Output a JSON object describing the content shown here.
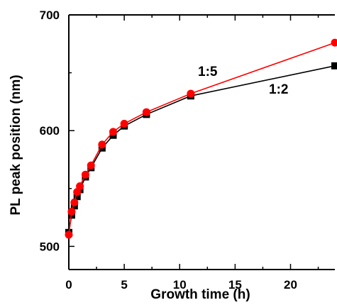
{
  "chart_data": {
    "type": "line",
    "title": "",
    "xlabel": "Growth time (h)",
    "ylabel": "PL peak position (nm)",
    "xlim": [
      0,
      24
    ],
    "ylim": [
      480,
      700
    ],
    "xticks": [
      0,
      5,
      10,
      15,
      20
    ],
    "yticks": [
      500,
      600,
      700
    ],
    "grid": false,
    "series": [
      {
        "name": "1:2",
        "color": "#000000",
        "marker": "square",
        "x": [
          0,
          0.25,
          0.5,
          0.75,
          1,
          1.5,
          2,
          3,
          4,
          5,
          7,
          11,
          24
        ],
        "y": [
          512,
          527,
          535,
          543,
          549,
          560,
          568,
          585,
          596,
          604,
          614,
          630,
          656
        ]
      },
      {
        "name": "1:5",
        "color": "#ff0000",
        "marker": "circle",
        "x": [
          0,
          0.25,
          0.5,
          0.75,
          1,
          1.5,
          2,
          3,
          4,
          5,
          7,
          11,
          24
        ],
        "y": [
          510,
          530,
          538,
          547,
          552,
          562,
          570,
          588,
          599,
          606,
          616,
          632,
          676
        ]
      }
    ]
  }
}
